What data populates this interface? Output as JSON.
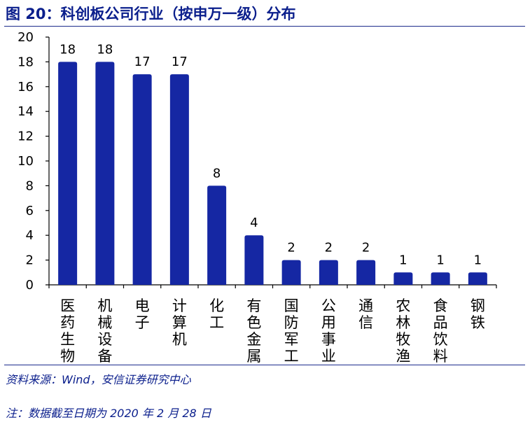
{
  "header": {
    "title": "图 20：科创板公司行业（按申万一级）分布"
  },
  "notes": {
    "source": "资料来源：Wind，安信证券研究中心",
    "footnote": "注：数据截至日期为 2020 年 2 月 28 日"
  },
  "colors": {
    "bar": "#1527a3",
    "title": "#0a1e8c",
    "rule": "#1c2c8c"
  },
  "chart_data": {
    "type": "bar",
    "categories": [
      "医药生物",
      "机械设备",
      "电子",
      "计算机",
      "化工",
      "有色金属",
      "国防军工",
      "公用事业",
      "通信",
      "农林牧渔",
      "食品饮料",
      "钢铁"
    ],
    "values": [
      18,
      18,
      17,
      17,
      8,
      4,
      2,
      2,
      2,
      1,
      1,
      1
    ],
    "title": "",
    "xlabel": "",
    "ylabel": "",
    "ylim": [
      0,
      20
    ],
    "yticks": [
      0,
      2,
      4,
      6,
      8,
      10,
      12,
      14,
      16,
      18,
      20
    ],
    "data_labels": true,
    "grid": false,
    "legend": "none"
  }
}
